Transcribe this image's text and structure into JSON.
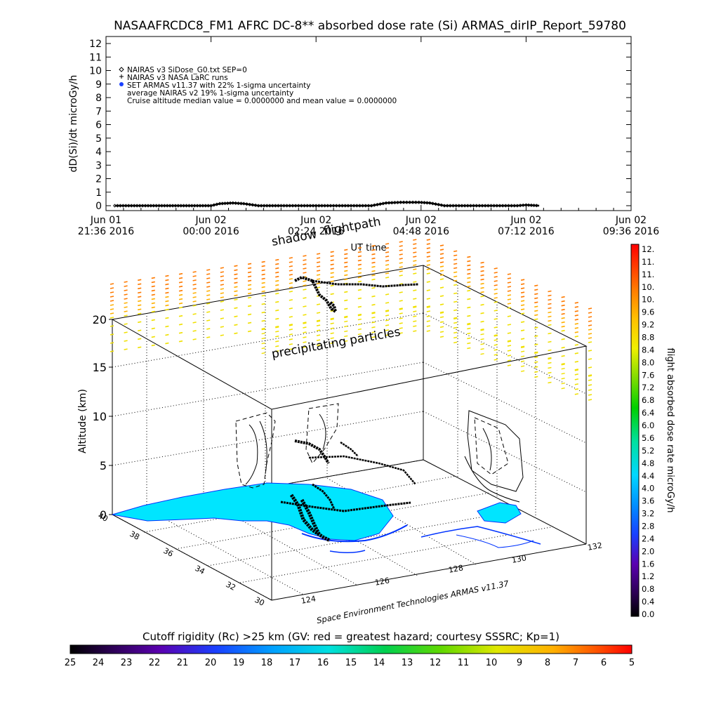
{
  "colors": {
    "ink": "#000000",
    "sea": "#00e5ff",
    "coast": "#0033ff",
    "background": "#ffffff"
  },
  "chart_data": [
    {
      "type": "line",
      "title": "NASAAFRCDC8_FM1 AFRC DC-8** absorbed dose rate (Si) ARMAS_dirIP_Report_59780",
      "ylabel": "dD(Si)/dt microGy/h",
      "ylim": [
        0,
        12
      ],
      "yticks": [
        "0",
        "1",
        "2",
        "3",
        "4",
        "5",
        "6",
        "7",
        "8",
        "9",
        "10",
        "11",
        "12"
      ],
      "xticks": [
        {
          "l1": "Jun 01",
          "l2": "21:36 2016"
        },
        {
          "l1": "Jun 02",
          "l2": "00:00 2016"
        },
        {
          "l1": "Jun 02",
          "l2": "02:24 2016"
        },
        {
          "l1": "Jun 02",
          "l2": "04:48 2016"
        },
        {
          "l1": "Jun 02",
          "l2": "07:12 2016"
        },
        {
          "l1": "Jun 02",
          "l2": "09:36 2016"
        }
      ],
      "xlim": [
        "2016-06-01 21:36",
        "2016-06-02 09:36"
      ],
      "legend": [
        "NAIRAS v3 SiDose_G0.txt SEP=0",
        "NAIRAS v3 NASA LaRC runs",
        "SET ARMAS v11.37 with 22% 1-sigma uncertainty",
        "average NAIRAS v2 19% 1-sigma uncertainty",
        "Cruise altitude median value = 0.0000000 and mean value = 0.0000000"
      ],
      "legend_placement": "top-left",
      "series": [
        {
          "name": "SET ARMAS v11.37 with 22% 1-sigma uncertainty",
          "x": [
            "2016-06-01 21:48",
            "2016-06-01 22:30",
            "2016-06-01 23:15",
            "2016-06-02 00:00",
            "2016-06-02 00:12",
            "2016-06-02 00:30",
            "2016-06-02 00:45",
            "2016-06-02 01:05",
            "2016-06-02 01:40",
            "2016-06-02 02:24",
            "2016-06-02 03:00",
            "2016-06-02 03:40",
            "2016-06-02 04:00",
            "2016-06-02 04:20",
            "2016-06-02 04:45",
            "2016-06-02 05:00",
            "2016-06-02 05:20",
            "2016-06-02 06:00",
            "2016-06-02 06:40",
            "2016-06-02 07:00",
            "2016-06-02 07:12",
            "2016-06-02 07:30"
          ],
          "y": [
            0.0,
            0.0,
            0.0,
            0.0,
            0.15,
            0.2,
            0.15,
            0.0,
            0.0,
            0.0,
            0.0,
            0.0,
            0.2,
            0.25,
            0.25,
            0.2,
            0.0,
            0.0,
            0.0,
            0.0,
            0.05,
            0.0
          ]
        }
      ]
    },
    {
      "type": "scatter",
      "title": "",
      "xlabel": "UT time",
      "ylabel": "Altitude (km)",
      "ylim": [
        0,
        20
      ],
      "alt_ticks": [
        "0",
        "5",
        "10",
        "15",
        "20"
      ],
      "lat_ticks": [
        "30",
        "32",
        "34",
        "36",
        "38",
        "40"
      ],
      "lon_ticks": [
        "124",
        "126",
        "128",
        "130",
        "132"
      ],
      "annotations": [
        "shadow",
        "flightpath",
        "precipitating particles",
        "Space Environment Technologies ARMAS v11.37"
      ],
      "colorbar": {
        "label": "flight absorbed dose rate microGy/h",
        "ticks": [
          "12.",
          "11.",
          "11.",
          "10.",
          "10.",
          "9.6",
          "9.2",
          "8.8",
          "8.4",
          "8.0",
          "7.6",
          "7.2",
          "6.8",
          "6.4",
          "6.0",
          "5.6",
          "5.2",
          "4.8",
          "4.4",
          "4.0",
          "3.6",
          "3.2",
          "2.8",
          "2.4",
          "2.0",
          "1.6",
          "1.2",
          "0.8",
          "0.4",
          "0.0"
        ]
      }
    },
    {
      "type": "heatmap",
      "title": "Cutoff rigidity (Rc) >25 km (GV: red = greatest hazard; courtesy SSSRC; Kp=1)",
      "ticks": [
        "25",
        "24",
        "23",
        "22",
        "21",
        "20",
        "19",
        "18",
        "17",
        "16",
        "15",
        "14",
        "13",
        "12",
        "11",
        "10",
        "9",
        "8",
        "7",
        "6",
        "5"
      ]
    }
  ]
}
